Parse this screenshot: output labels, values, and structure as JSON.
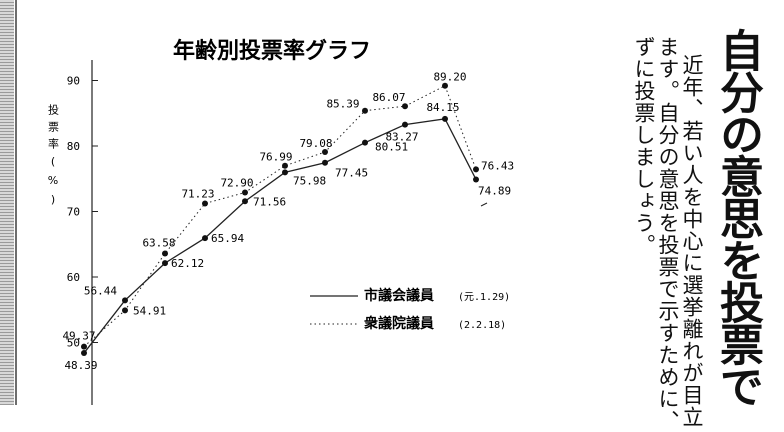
{
  "article": {
    "headline": "自分の意思を投票で",
    "body_lines": [
      "近年、若い人を中心に選挙離れが目立",
      "ます。自分の意思を投票で示すために、",
      "ずに投票しましょう。"
    ]
  },
  "chart_data": {
    "type": "line",
    "title": "年齢別投票率グラフ",
    "ylabel": "投票率(%)",
    "yticks": [
      "90",
      "80",
      "70",
      "60",
      "50"
    ],
    "ylim": [
      47,
      95
    ],
    "series": [
      {
        "name": "市議会議員",
        "note": "(元.1.29)",
        "style": "solid",
        "values": [
          48.39,
          56.44,
          62.12,
          65.94,
          71.56,
          75.98,
          77.45,
          80.51,
          83.27,
          84.15,
          74.89
        ],
        "labels": [
          "48.39",
          "56.44",
          "62.12",
          "65.94",
          "71.56",
          "75.98",
          "77.45",
          "80.51",
          "83.27",
          "84.15",
          "74.89"
        ]
      },
      {
        "name": "衆議院議員",
        "note": "(2.2.18)",
        "style": "dotted",
        "values": [
          49.37,
          54.91,
          63.58,
          71.23,
          72.9,
          76.99,
          79.08,
          85.39,
          86.07,
          89.2,
          76.43
        ],
        "labels": [
          "49.37",
          "54.91",
          "63.58",
          "71.23",
          "72.90",
          "76.99",
          "79.08",
          "85.39",
          "86.07",
          "89.20",
          "76.43"
        ]
      }
    ]
  }
}
